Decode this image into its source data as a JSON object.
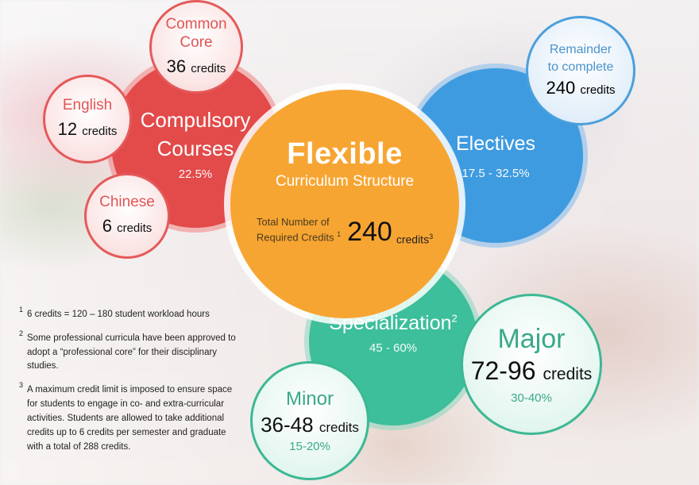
{
  "center": {
    "title": "Flexible",
    "subtitle": "Curriculum Structure",
    "total_label_line1": "Total Number of",
    "total_label_line2": "Required Credits",
    "total_label_note": "1",
    "total_value": "240",
    "total_unit": "credits",
    "total_unit_note": "3"
  },
  "compulsory": {
    "title_line1": "Compulsory",
    "title_line2": "Courses",
    "percent": "22.5%",
    "components": [
      {
        "name": "Common Core",
        "credits": "36",
        "unit": "credits"
      },
      {
        "name": "English",
        "credits": "12",
        "unit": "credits"
      },
      {
        "name": "Chinese",
        "credits": "6",
        "unit": "credits"
      }
    ]
  },
  "electives": {
    "title": "Electives",
    "percent": "17.5 - 32.5%",
    "remainder_line1": "Remainder",
    "remainder_line2": "to complete",
    "remainder_credits": "240",
    "remainder_unit": "credits"
  },
  "specialization": {
    "title": "Specialization",
    "note": "2",
    "percent": "45 - 60%",
    "major": {
      "title": "Major",
      "credits": "72-96",
      "unit": "credits",
      "percent": "30-40%"
    },
    "minor": {
      "title": "Minor",
      "credits": "36-48",
      "unit": "credits",
      "percent": "15-20%"
    }
  },
  "footnotes": [
    {
      "num": "1",
      "text": "6 credits = 120 – 180 student workload hours"
    },
    {
      "num": "2",
      "text": "Some professional curricula have been approved to adopt a “professional core” for their disciplinary studies."
    },
    {
      "num": "3",
      "text": "A maximum credit limit is imposed to ensure space for students to engage in co- and extra-curricular activities. Students are allowed to take additional credits up to 6 credits per semester and graduate with a total of 288 credits."
    }
  ],
  "colors": {
    "compulsory": "#e34a4a",
    "electives": "#3f9be0",
    "specialization": "#3cbf9a",
    "center": "#f7a532"
  }
}
